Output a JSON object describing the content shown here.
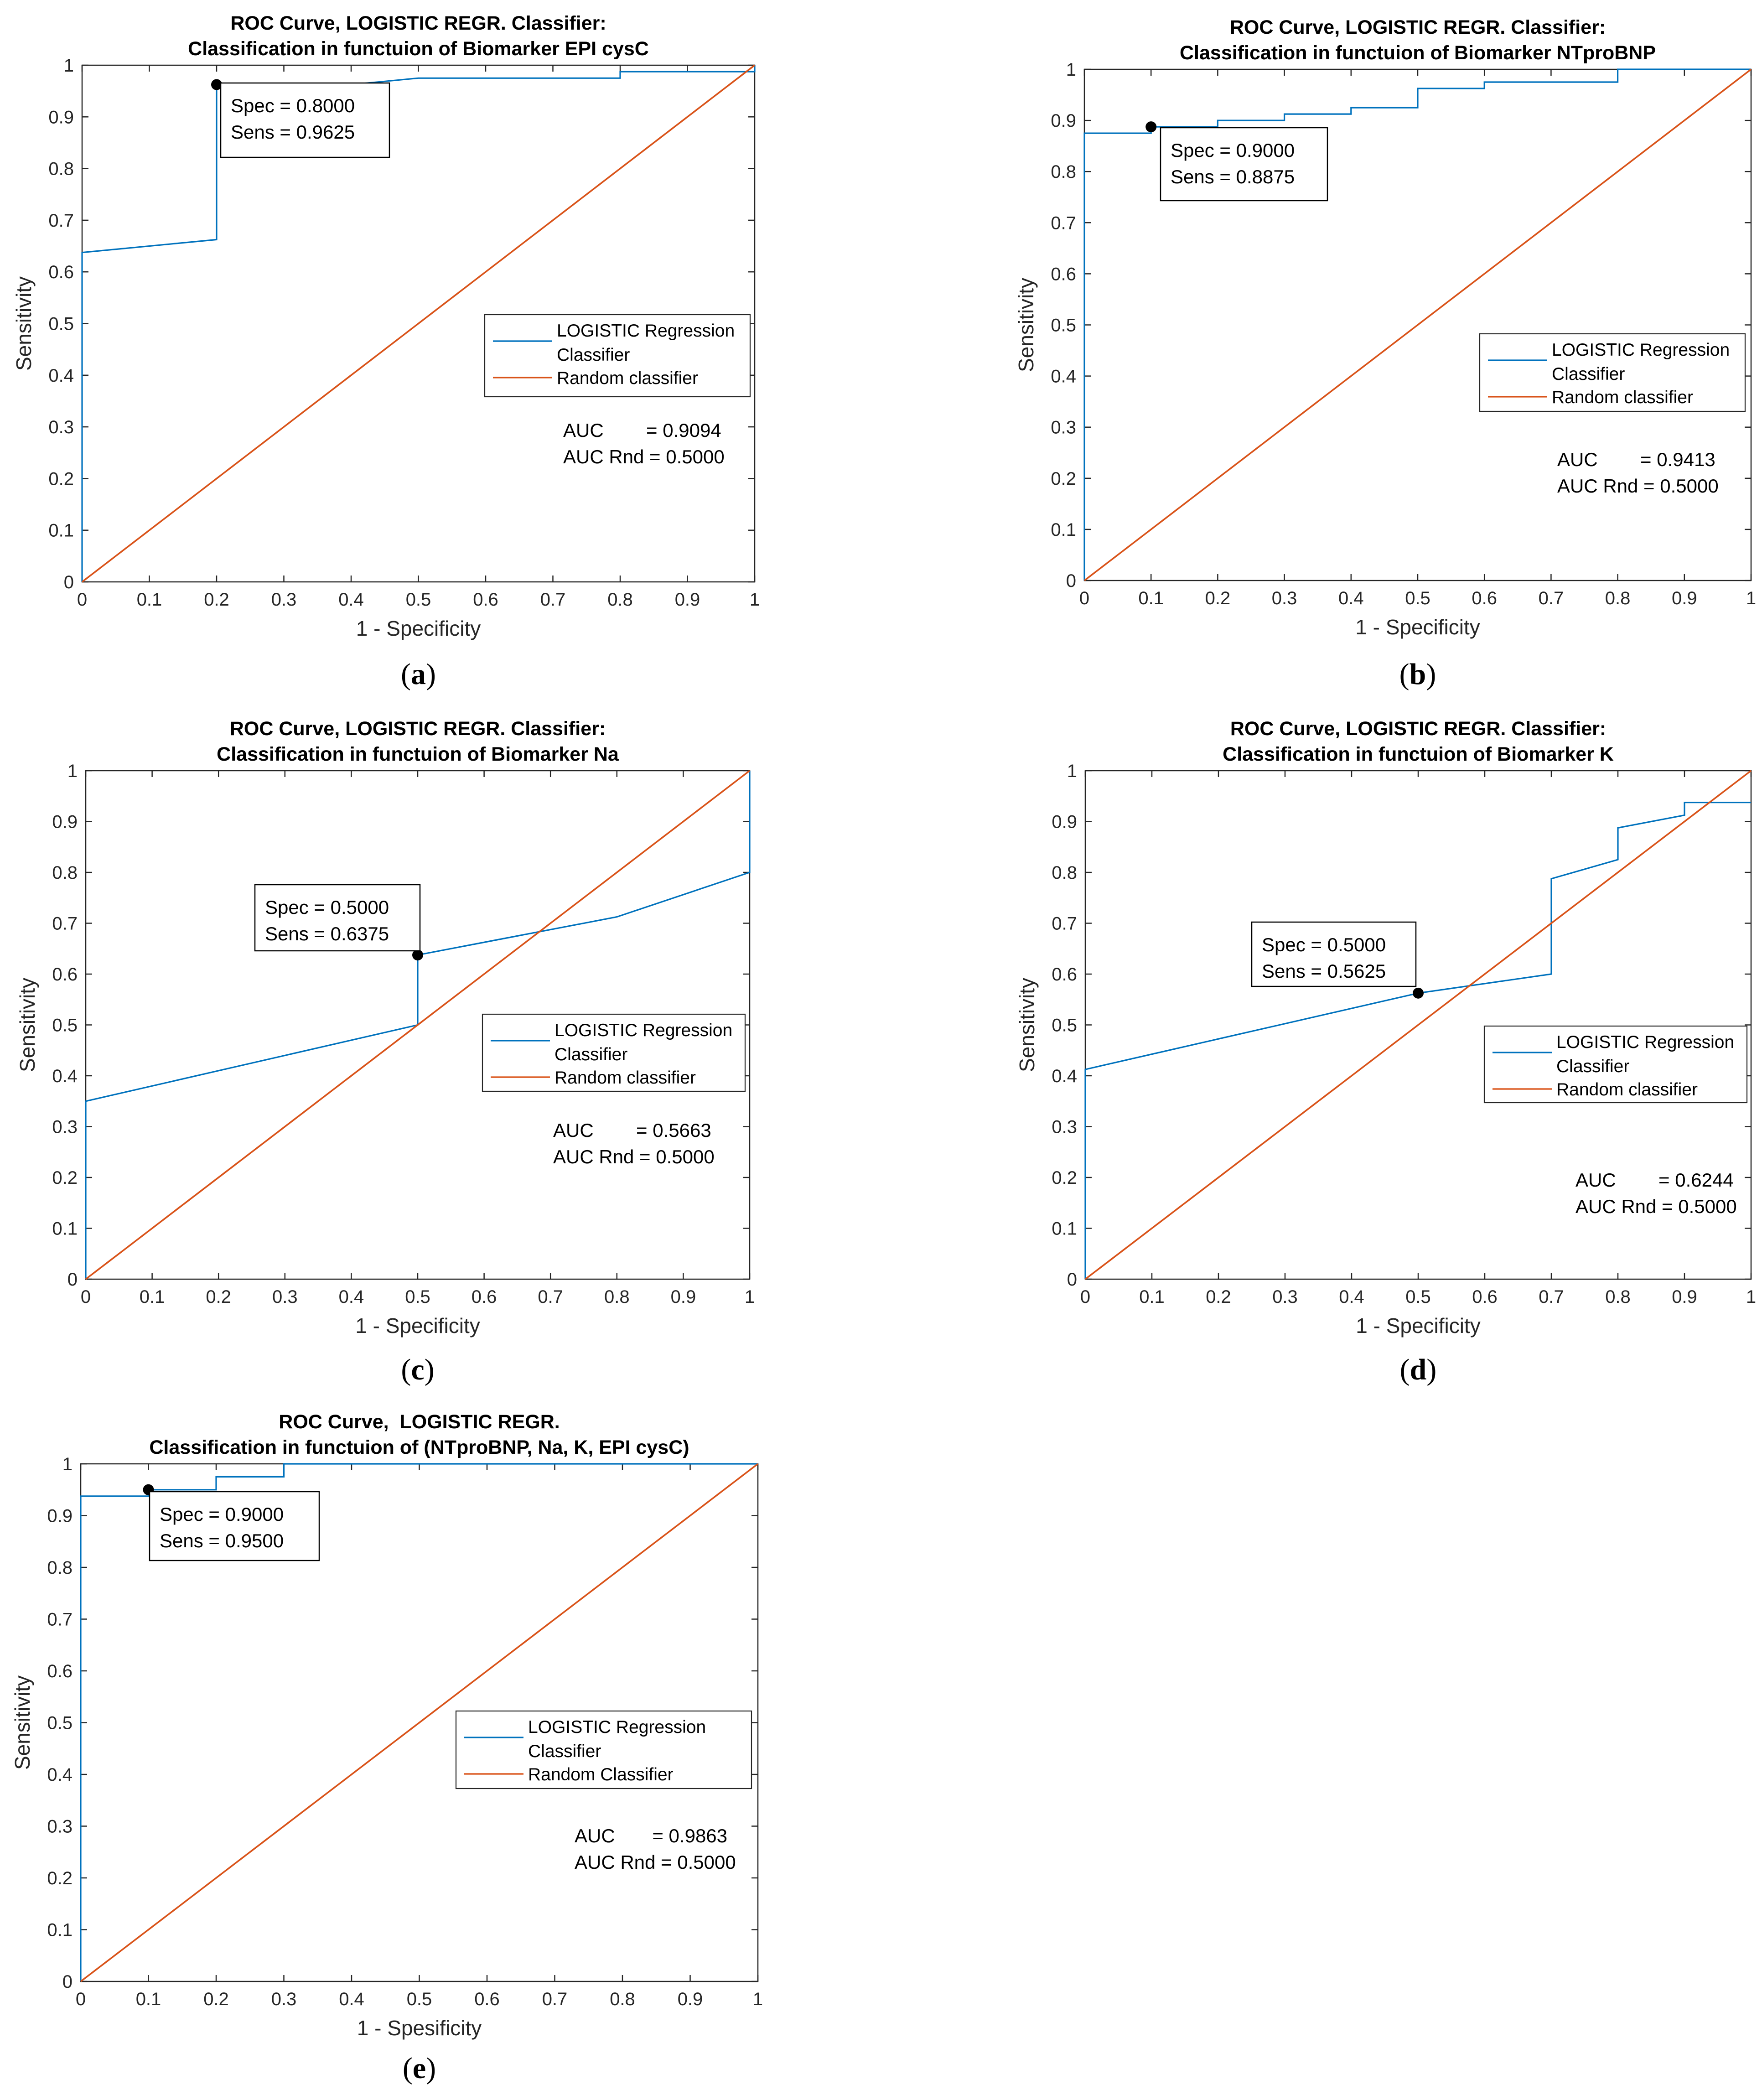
{
  "chart_data": [
    {
      "type": "line",
      "panel": "a",
      "title": [
        "ROC Curve, LOGISTIC REGR. Classifier:",
        "Classification in functuion of Biomarker EPI cysC"
      ],
      "xlabel": "1 - Specificity",
      "ylabel": "Sensitivity",
      "xlim": [
        0,
        1
      ],
      "ylim": [
        0,
        1
      ],
      "xticks": [
        "0",
        "0.1",
        "0.2",
        "0.3",
        "0.4",
        "0.5",
        "0.6",
        "0.7",
        "0.8",
        "0.9",
        "1"
      ],
      "yticks": [
        "0",
        "0.1",
        "0.2",
        "0.3",
        "0.4",
        "0.5",
        "0.6",
        "0.7",
        "0.8",
        "0.9",
        "1"
      ],
      "legend": [
        "LOGISTIC Regression Classifier",
        "Random classifier"
      ],
      "series": [
        {
          "name": "LOGISTIC Regression Classifier",
          "color": "#0072BD",
          "x": [
            0,
            0,
            0.2,
            0.2,
            0.4,
            0.5,
            0.8,
            0.8,
            1.0,
            1.0
          ],
          "y": [
            0,
            0.6375,
            0.6625,
            0.9625,
            0.9625,
            0.975,
            0.975,
            0.9875,
            0.9875,
            1.0
          ]
        },
        {
          "name": "Random classifier",
          "color": "#D95319",
          "x": [
            0,
            1
          ],
          "y": [
            0,
            1
          ]
        }
      ],
      "marker": {
        "x": 0.2,
        "y": 0.9625
      },
      "annotation": [
        "Spec = 0.8000",
        "Sens = 0.9625"
      ],
      "auc": [
        "AUC        = 0.9094",
        "AUC Rnd = 0.5000"
      ],
      "caption": "a"
    },
    {
      "type": "line",
      "panel": "b",
      "title": [
        "ROC Curve, LOGISTIC REGR. Classifier:",
        "Classification in functuion of Biomarker NTproBNP"
      ],
      "xlabel": "1 - Specificity",
      "ylabel": "Sensitivity",
      "xlim": [
        0,
        1
      ],
      "ylim": [
        0,
        1
      ],
      "xticks": [
        "0",
        "0.1",
        "0.2",
        "0.3",
        "0.4",
        "0.5",
        "0.6",
        "0.7",
        "0.8",
        "0.9",
        "1"
      ],
      "yticks": [
        "0",
        "0.1",
        "0.2",
        "0.3",
        "0.4",
        "0.5",
        "0.6",
        "0.7",
        "0.8",
        "0.9",
        "1"
      ],
      "legend": [
        "LOGISTIC Regression Classifier",
        "Random classifier"
      ],
      "series": [
        {
          "name": "LOGISTIC Regression Classifier",
          "color": "#0072BD",
          "x": [
            0,
            0,
            0.1,
            0.1,
            0.2,
            0.2,
            0.3,
            0.3,
            0.4,
            0.4,
            0.5,
            0.5,
            0.6,
            0.6,
            0.8,
            0.8,
            1.0
          ],
          "y": [
            0,
            0.875,
            0.875,
            0.8875,
            0.8875,
            0.9,
            0.9,
            0.9125,
            0.9125,
            0.925,
            0.925,
            0.9625,
            0.9625,
            0.975,
            0.975,
            1.0,
            1.0
          ]
        },
        {
          "name": "Random classifier",
          "color": "#D95319",
          "x": [
            0,
            1
          ],
          "y": [
            0,
            1
          ]
        }
      ],
      "marker": {
        "x": 0.1,
        "y": 0.8875
      },
      "annotation": [
        "Spec = 0.9000",
        "Sens = 0.8875"
      ],
      "auc": [
        "AUC        = 0.9413",
        "AUC Rnd = 0.5000"
      ],
      "caption": "b"
    },
    {
      "type": "line",
      "panel": "c",
      "title": [
        "ROC Curve, LOGISTIC REGR. Classifier:",
        "Classification in functuion of Biomarker Na"
      ],
      "xlabel": "1 - Specificity",
      "ylabel": "Sensitivity",
      "xlim": [
        0,
        1
      ],
      "ylim": [
        0,
        1
      ],
      "xticks": [
        "0",
        "0.1",
        "0.2",
        "0.3",
        "0.4",
        "0.5",
        "0.6",
        "0.7",
        "0.8",
        "0.9",
        "1"
      ],
      "yticks": [
        "0",
        "0.1",
        "0.2",
        "0.3",
        "0.4",
        "0.5",
        "0.6",
        "0.7",
        "0.8",
        "0.9",
        "1"
      ],
      "legend": [
        "LOGISTIC Regression Classifier",
        "Random classifier"
      ],
      "series": [
        {
          "name": "LOGISTIC Regression Classifier",
          "color": "#0072BD",
          "x": [
            0,
            0,
            0.5,
            0.5,
            0.8,
            1.0,
            1.0
          ],
          "y": [
            0,
            0.35,
            0.5,
            0.6375,
            0.7125,
            0.8,
            1.0
          ]
        },
        {
          "name": "Random classifier",
          "color": "#D95319",
          "x": [
            0,
            1
          ],
          "y": [
            0,
            1
          ]
        }
      ],
      "marker": {
        "x": 0.5,
        "y": 0.6375
      },
      "annotation": [
        "Spec = 0.5000",
        "Sens = 0.6375"
      ],
      "auc": [
        "AUC        = 0.5663",
        "AUC Rnd = 0.5000"
      ],
      "caption": "c"
    },
    {
      "type": "line",
      "panel": "d",
      "title": [
        "ROC Curve, LOGISTIC REGR. Classifier:",
        "Classification in functuion of Biomarker K"
      ],
      "xlabel": "1 - Specificity",
      "ylabel": "Sensitivity",
      "xlim": [
        0,
        1
      ],
      "ylim": [
        0,
        1
      ],
      "xticks": [
        "0",
        "0.1",
        "0.2",
        "0.3",
        "0.4",
        "0.5",
        "0.6",
        "0.7",
        "0.8",
        "0.9",
        "1"
      ],
      "yticks": [
        "0",
        "0.1",
        "0.2",
        "0.3",
        "0.4",
        "0.5",
        "0.6",
        "0.7",
        "0.8",
        "0.9",
        "1"
      ],
      "legend": [
        "LOGISTIC Regression Classifier",
        "Random classifier"
      ],
      "series": [
        {
          "name": "LOGISTIC Regression Classifier",
          "color": "#0072BD",
          "x": [
            0,
            0,
            0.5,
            0.7,
            0.7,
            0.8,
            0.8,
            0.9,
            0.9,
            1.0
          ],
          "y": [
            0,
            0.4125,
            0.5625,
            0.6,
            0.7875,
            0.825,
            0.8875,
            0.9125,
            0.9375,
            0.9375
          ]
        },
        {
          "name": "Random classifier",
          "color": "#D95319",
          "x": [
            0,
            1
          ],
          "y": [
            0,
            1
          ]
        }
      ],
      "marker": {
        "x": 0.5,
        "y": 0.5625
      },
      "annotation": [
        "Spec = 0.5000",
        "Sens = 0.5625"
      ],
      "auc": [
        "AUC        = 0.6244",
        "AUC Rnd = 0.5000"
      ],
      "caption": "d"
    },
    {
      "type": "line",
      "panel": "e",
      "title": [
        "ROC Curve,  LOGISTIC REGR.",
        "Classification in functuion of (NTproBNP, Na, K, EPI cysC)"
      ],
      "xlabel": "1 - Spesificity",
      "ylabel": "Sensitivity",
      "xlim": [
        0,
        1
      ],
      "ylim": [
        0,
        1
      ],
      "xticks": [
        "0",
        "0.1",
        "0.2",
        "0.3",
        "0.4",
        "0.5",
        "0.6",
        "0.7",
        "0.8",
        "0.9",
        "1"
      ],
      "yticks": [
        "0",
        "0.1",
        "0.2",
        "0.3",
        "0.4",
        "0.5",
        "0.6",
        "0.7",
        "0.8",
        "0.9",
        "1"
      ],
      "legend": [
        "LOGISTIC Regression Classifier",
        "Random Classifier"
      ],
      "series": [
        {
          "name": "LOGISTIC Regression Classifier",
          "color": "#0072BD",
          "x": [
            0,
            0,
            0.1,
            0.1,
            0.2,
            0.2,
            0.3,
            0.3,
            1.0
          ],
          "y": [
            0,
            0.9375,
            0.9375,
            0.95,
            0.95,
            0.975,
            0.975,
            1.0,
            1.0
          ]
        },
        {
          "name": "Random Classifier",
          "color": "#D95319",
          "x": [
            0,
            1
          ],
          "y": [
            0,
            1
          ]
        }
      ],
      "marker": {
        "x": 0.1,
        "y": 0.95
      },
      "annotation": [
        "Spec = 0.9000",
        "Sens = 0.9500"
      ],
      "auc": [
        "AUC       = 0.9863",
        "AUC Rnd = 0.5000"
      ],
      "caption": "e"
    }
  ]
}
